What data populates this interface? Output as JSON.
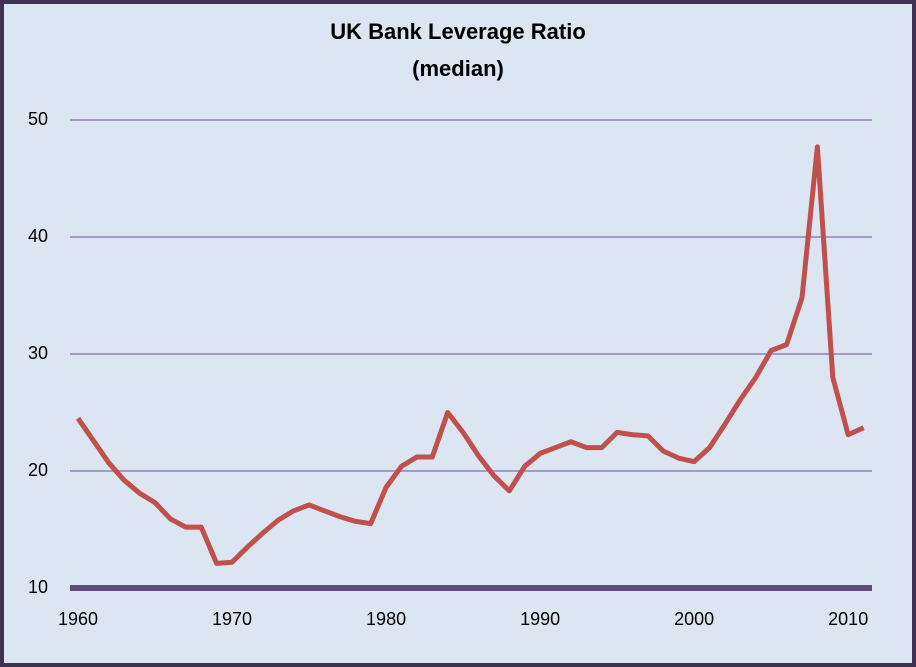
{
  "chart_data": {
    "type": "line",
    "title": "UK Bank Leverage Ratio",
    "subtitle": "(median)",
    "x": [
      1960,
      1961,
      1962,
      1963,
      1964,
      1965,
      1966,
      1967,
      1968,
      1969,
      1970,
      1971,
      1972,
      1973,
      1974,
      1975,
      1976,
      1977,
      1978,
      1979,
      1980,
      1981,
      1982,
      1983,
      1984,
      1985,
      1986,
      1987,
      1988,
      1989,
      1990,
      1991,
      1992,
      1993,
      1994,
      1995,
      1996,
      1997,
      1998,
      1999,
      2000,
      2001,
      2002,
      2003,
      2004,
      2005,
      2006,
      2007,
      2008,
      2009,
      2010,
      2011
    ],
    "series": [
      {
        "name": "Leverage ratio",
        "color": "#c0504d",
        "values": [
          24.5,
          22.6,
          20.7,
          19.2,
          18.1,
          17.3,
          15.9,
          15.2,
          15.2,
          12.1,
          12.2,
          13.5,
          14.7,
          15.8,
          16.6,
          17.1,
          16.6,
          16.1,
          15.7,
          15.5,
          18.6,
          20.4,
          21.2,
          21.2,
          25.0,
          23.3,
          21.3,
          19.6,
          18.3,
          20.4,
          21.5,
          22.0,
          22.5,
          22.0,
          22.0,
          23.3,
          23.1,
          23.0,
          21.7,
          21.1,
          20.8,
          22.0,
          24.0,
          26.1,
          28.0,
          30.3,
          30.8,
          34.8,
          47.7,
          28.0,
          23.1,
          23.7
        ]
      }
    ],
    "xlim": [
      1960,
      2012
    ],
    "xticks": [
      1960,
      1970,
      1980,
      1990,
      2000,
      2010
    ],
    "ylim": [
      10,
      50
    ],
    "yticks": [
      10,
      20,
      30,
      40,
      50
    ],
    "grid": true
  }
}
